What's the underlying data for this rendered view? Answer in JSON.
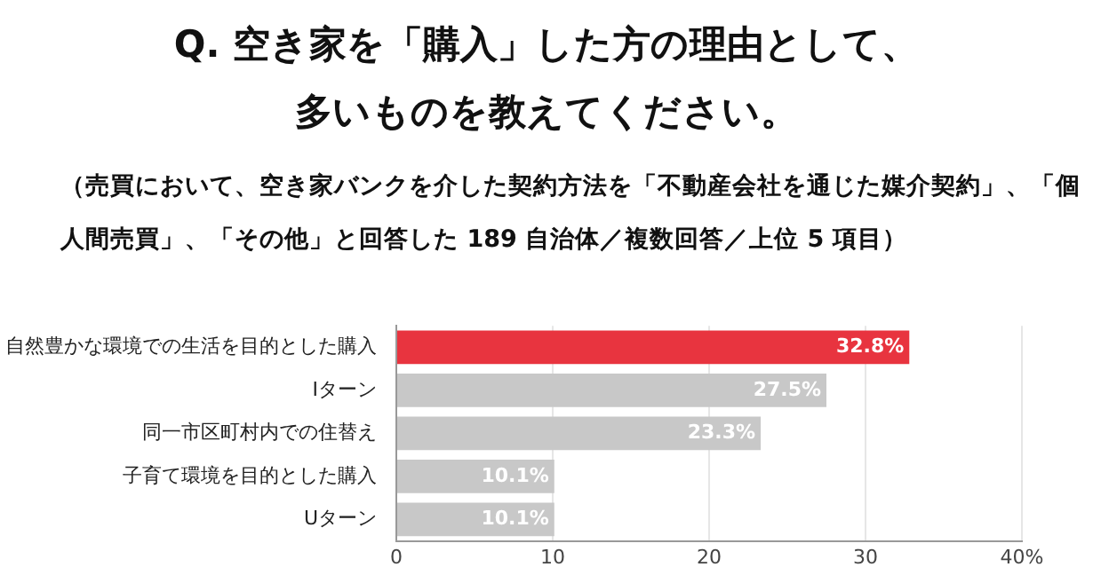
{
  "chart_data": {
    "type": "bar",
    "orientation": "horizontal",
    "title": "Q.  空き家を「購入」した方の理由として、多いものを教えてください。",
    "subtitle": "（売買において、空き家バンクを介した契約方法を「不動産会社を通じた媒介契約」、「個人間売買」、「その他」と回答した 189 自治体／複数回答／上位 5 項目）",
    "categories": [
      "自然豊かな環境での生活を目的とした購入",
      "Iターン",
      "同一市区町村内での住替え",
      "子育て環境を目的とした購入",
      "Uターン"
    ],
    "values": [
      32.8,
      27.5,
      23.3,
      10.1,
      10.1
    ],
    "colors": [
      "#e8343f",
      "#c8c8c8",
      "#c8c8c8",
      "#c8c8c8",
      "#c8c8c8"
    ],
    "value_labels": [
      "32.8%",
      "27.5%",
      "23.3%",
      "10.1%",
      "10.1%"
    ],
    "xlim": [
      0,
      40
    ],
    "xticks": [
      0,
      10,
      20,
      30,
      {
        "value": 40,
        "label": "40%"
      }
    ],
    "grid": "x",
    "legend": false
  }
}
